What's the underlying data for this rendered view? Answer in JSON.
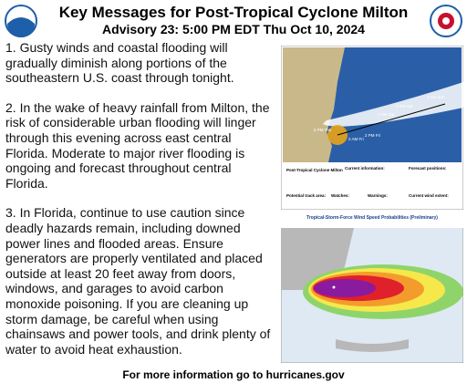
{
  "header": {
    "title": "Key Messages for Post-Tropical Cyclone Milton",
    "subtitle": "Advisory 23: 5:00 PM EDT Thu Oct 10, 2024"
  },
  "messages": [
    "1. Gusty winds and coastal flooding will gradually diminish along portions of the southeastern U.S. coast through tonight.",
    "2. In the wake of heavy rainfall from Milton, the risk of considerable urban flooding will linger through this evening across east central Florida. Moderate to major river flooding is ongoing and forecast throughout central Florida.",
    "3. In Florida, continue to use caution since deadly hazards remain, including downed power lines and flooded areas. Ensure generators are properly ventilated and placed outside at least 20 feet away from doors, windows, and garages to avoid carbon monoxide poisoning. If you are cleaning up storm damage, be careful when using chainsaws and power tools, and drink plenty of water to avoid heat exhaustion."
  ],
  "track_map": {
    "labels": [
      "2 AM Sun",
      "2 PM Sat",
      "2 AM Sat",
      "2 PM Fri",
      "2 AM Fri",
      "5 PM Thu"
    ],
    "legend": [
      "Post-Tropical Cyclone Milton",
      "Current information:",
      "Forecast positions:",
      "Potential track area:",
      "Watches:",
      "Warnings:",
      "Current wind extent:"
    ]
  },
  "wind_map": {
    "title": "Tropical-Storm-Force Wind Speed Probabilities (Preliminary)"
  },
  "footer": "For more information go to hurricanes.gov"
}
